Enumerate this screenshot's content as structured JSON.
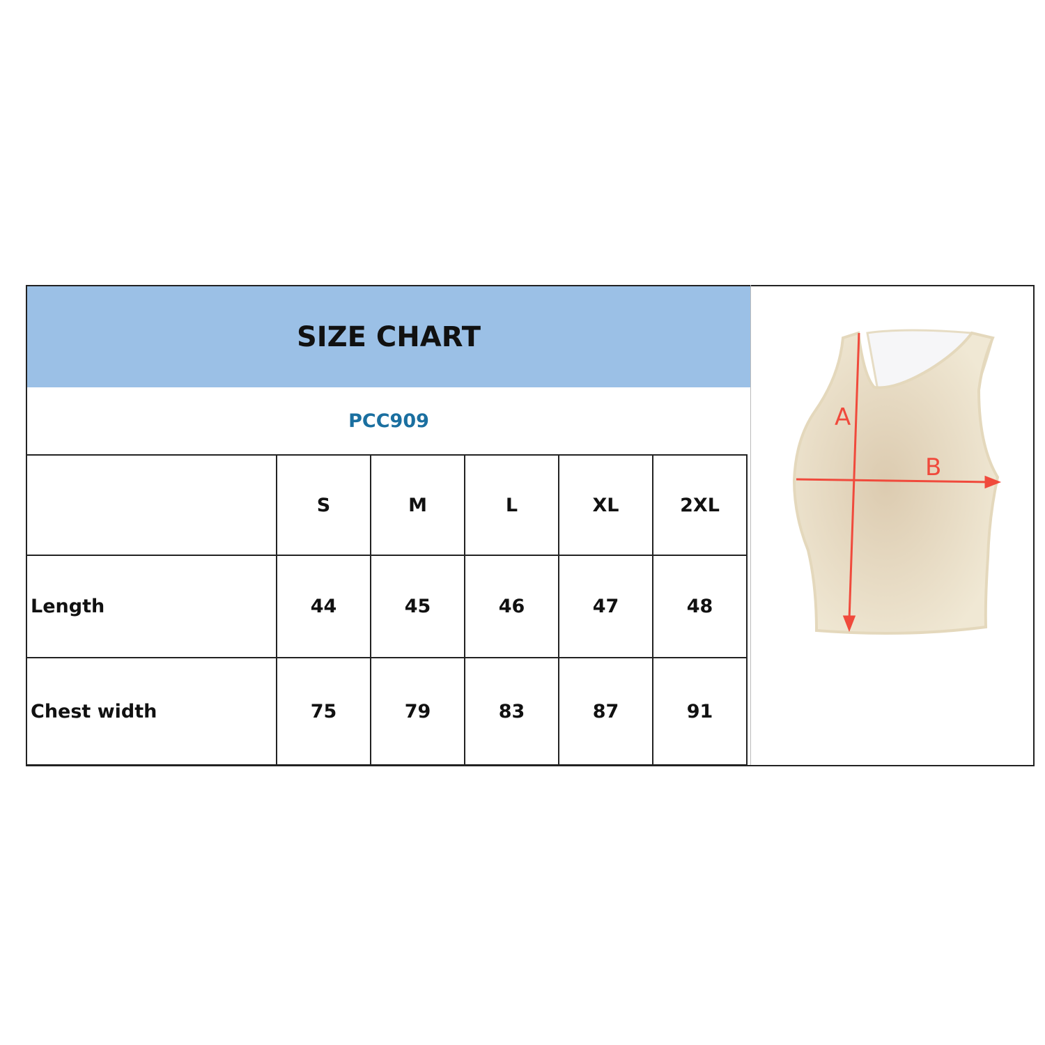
{
  "title": "SIZE CHART",
  "product_code": "PCC909",
  "table": {
    "sizes": [
      "S",
      "M",
      "L",
      "XL",
      "2XL"
    ],
    "rows": [
      {
        "label": "Length",
        "values": [
          "44",
          "45",
          "46",
          "47",
          "48"
        ]
      },
      {
        "label": "Chest width",
        "values": [
          "75",
          "79",
          "83",
          "87",
          "91"
        ]
      }
    ]
  },
  "diagram": {
    "label_a": "A",
    "label_b": "B",
    "garment": "tank-top",
    "arrow_color": "#f04a3c",
    "garment_color": "#ede3cc"
  },
  "colors": {
    "header_bg": "#9bc0e6",
    "code_text": "#1a6fa0"
  }
}
